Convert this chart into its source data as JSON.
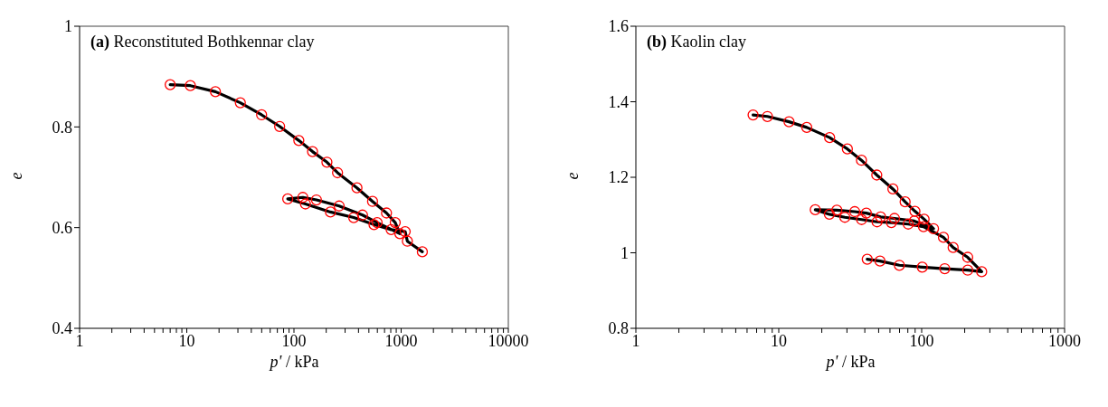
{
  "chart_data": [
    {
      "type": "scatter",
      "title": "(a) Reconstituted Bothkennar clay",
      "xlabel": "p' / kPa",
      "ylabel": "e",
      "log": "x",
      "marker": "circle",
      "xlim": [
        1,
        10000
      ],
      "ylim": [
        0.4,
        1
      ],
      "xticks": [
        1,
        {
          "value": 2,
          "label": null
        },
        {
          "value": 3,
          "label": null
        },
        {
          "value": 4,
          "label": null
        },
        {
          "value": 5,
          "label": null
        },
        {
          "value": 6,
          "label": null
        },
        {
          "value": 7,
          "label": null
        },
        {
          "value": 8,
          "label": null
        },
        {
          "value": 9,
          "label": null
        },
        10,
        {
          "value": 20,
          "label": null
        },
        {
          "value": 30,
          "label": null
        },
        {
          "value": 40,
          "label": null
        },
        {
          "value": 50,
          "label": null
        },
        {
          "value": 60,
          "label": null
        },
        {
          "value": 70,
          "label": null
        },
        {
          "value": 80,
          "label": null
        },
        {
          "value": 90,
          "label": null
        },
        100,
        {
          "value": 200,
          "label": null
        },
        {
          "value": 300,
          "label": null
        },
        {
          "value": 400,
          "label": null
        },
        {
          "value": 500,
          "label": null
        },
        {
          "value": 600,
          "label": null
        },
        {
          "value": 700,
          "label": null
        },
        {
          "value": 800,
          "label": null
        },
        {
          "value": 900,
          "label": null
        },
        1000,
        {
          "value": 2000,
          "label": null
        },
        {
          "value": 3000,
          "label": null
        },
        {
          "value": 4000,
          "label": null
        },
        {
          "value": 5000,
          "label": null
        },
        {
          "value": 6000,
          "label": null
        },
        {
          "value": 7000,
          "label": null
        },
        {
          "value": 8000,
          "label": null
        },
        {
          "value": 9000,
          "label": null
        },
        10000
      ],
      "yticks": [
        0.4,
        0.6,
        0.8,
        1
      ],
      "series": [
        {
          "type": "line",
          "marker": "none",
          "color": "#000000",
          "x": [
            7,
            10.8,
            18.5,
            31.6,
            49.9,
            73.5,
            111,
            149,
            203,
            255,
            387,
            541,
            730,
            881,
            973,
            597,
            436,
            264,
            162,
            121,
            87.5,
            128,
            219,
            361,
            558,
            807,
            1091,
            1143,
            1577
          ],
          "values": [
            0.884,
            0.882,
            0.87,
            0.848,
            0.824,
            0.801,
            0.773,
            0.751,
            0.73,
            0.709,
            0.679,
            0.652,
            0.629,
            0.61,
            0.588,
            0.61,
            0.625,
            0.643,
            0.655,
            0.66,
            0.657,
            0.647,
            0.631,
            0.62,
            0.606,
            0.596,
            0.592,
            0.573,
            0.552
          ]
        },
        {
          "color": "#ff0000",
          "x": [
            7,
            10.8,
            18.5,
            31.6,
            49.9,
            73.5,
            111,
            149,
            203,
            255,
            387,
            541,
            730,
            881,
            973,
            597,
            436,
            264,
            162,
            121,
            87.5,
            128,
            219,
            361,
            558,
            807,
            1091,
            1143,
            1577
          ],
          "values": [
            0.884,
            0.882,
            0.87,
            0.848,
            0.824,
            0.801,
            0.773,
            0.751,
            0.73,
            0.709,
            0.679,
            0.652,
            0.629,
            0.61,
            0.588,
            0.61,
            0.625,
            0.643,
            0.655,
            0.66,
            0.657,
            0.647,
            0.631,
            0.62,
            0.606,
            0.596,
            0.592,
            0.573,
            0.552
          ]
        }
      ]
    },
    {
      "type": "scatter",
      "title": "(b) Kaolin clay",
      "xlabel": "p' / kPa",
      "ylabel": "e",
      "log": "x",
      "marker": "circle",
      "xlim": [
        1,
        1000
      ],
      "ylim": [
        0.8,
        1.6
      ],
      "xticks": [
        1,
        {
          "value": 2,
          "label": null
        },
        {
          "value": 3,
          "label": null
        },
        {
          "value": 4,
          "label": null
        },
        {
          "value": 5,
          "label": null
        },
        {
          "value": 6,
          "label": null
        },
        {
          "value": 7,
          "label": null
        },
        {
          "value": 8,
          "label": null
        },
        {
          "value": 9,
          "label": null
        },
        10,
        {
          "value": 20,
          "label": null
        },
        {
          "value": 30,
          "label": null
        },
        {
          "value": 40,
          "label": null
        },
        {
          "value": 50,
          "label": null
        },
        {
          "value": 60,
          "label": null
        },
        {
          "value": 70,
          "label": null
        },
        {
          "value": 80,
          "label": null
        },
        {
          "value": 90,
          "label": null
        },
        100,
        {
          "value": 200,
          "label": null
        },
        {
          "value": 300,
          "label": null
        },
        {
          "value": 400,
          "label": null
        },
        {
          "value": 500,
          "label": null
        },
        {
          "value": 600,
          "label": null
        },
        {
          "value": 700,
          "label": null
        },
        {
          "value": 800,
          "label": null
        },
        {
          "value": 900,
          "label": null
        },
        1000
      ],
      "yticks": [
        0.8,
        1,
        1.2,
        1.4,
        1.6
      ],
      "series": [
        {
          "type": "line",
          "marker": "none",
          "color": "#000000",
          "x": [
            6.61,
            8.33,
            11.8,
            15.7,
            22.7,
            30.2,
            37.9,
            48.5,
            62.9,
            76.6,
            89.7,
            104,
            121,
            88.8,
            64.5,
            51.6,
            41,
            34,
            25.5,
            18,
            22.6,
            29,
            38,
            48.7,
            61.4,
            80.5,
            103,
            142,
            166,
            210,
            263,
            210,
            145,
            101,
            69.8,
            51.1,
            41.6
          ],
          "values": [
            1.365,
            1.361,
            1.347,
            1.332,
            1.305,
            1.275,
            1.245,
            1.206,
            1.169,
            1.135,
            1.11,
            1.089,
            1.064,
            1.084,
            1.091,
            1.095,
            1.105,
            1.109,
            1.113,
            1.114,
            1.102,
            1.094,
            1.088,
            1.082,
            1.08,
            1.076,
            1.069,
            1.041,
            1.014,
            0.988,
            0.95,
            0.954,
            0.958,
            0.962,
            0.967,
            0.978,
            0.983
          ]
        },
        {
          "color": "#ff0000",
          "x": [
            6.61,
            8.33,
            11.8,
            15.7,
            22.7,
            30.2,
            37.9,
            48.5,
            62.9,
            76.6,
            89.7,
            104,
            121,
            88.8,
            64.5,
            51.6,
            41,
            34,
            25.5,
            18,
            22.6,
            29,
            38,
            48.7,
            61.4,
            80.5,
            103,
            142,
            166,
            210,
            263,
            210,
            145,
            101,
            69.8,
            51.1,
            41.6
          ],
          "values": [
            1.365,
            1.361,
            1.347,
            1.332,
            1.305,
            1.275,
            1.245,
            1.206,
            1.169,
            1.135,
            1.11,
            1.089,
            1.064,
            1.084,
            1.091,
            1.095,
            1.105,
            1.109,
            1.113,
            1.114,
            1.102,
            1.094,
            1.088,
            1.082,
            1.08,
            1.076,
            1.069,
            1.041,
            1.014,
            0.988,
            0.95,
            0.954,
            0.958,
            0.962,
            0.967,
            0.978,
            0.983
          ]
        }
      ]
    }
  ]
}
